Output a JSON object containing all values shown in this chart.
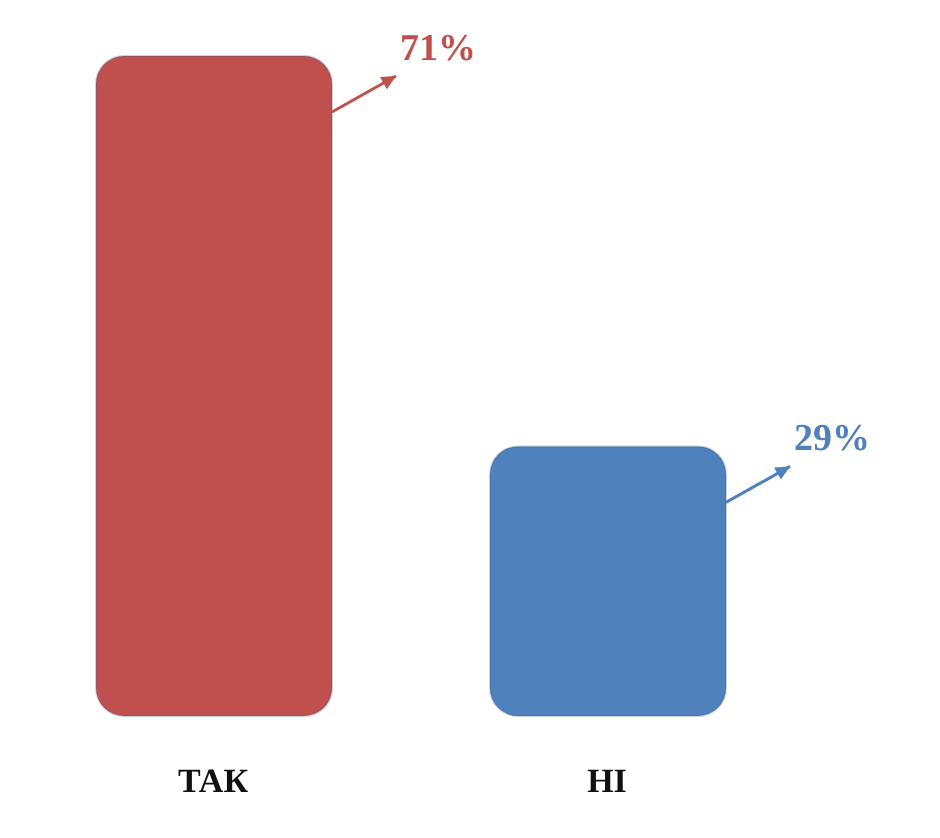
{
  "chart_data": {
    "type": "bar",
    "categories": [
      "ТАК",
      "НІ"
    ],
    "values": [
      71,
      29
    ],
    "colors": [
      "#c0504d",
      "#4f81bd"
    ],
    "value_labels": [
      "71%",
      "29%"
    ]
  }
}
